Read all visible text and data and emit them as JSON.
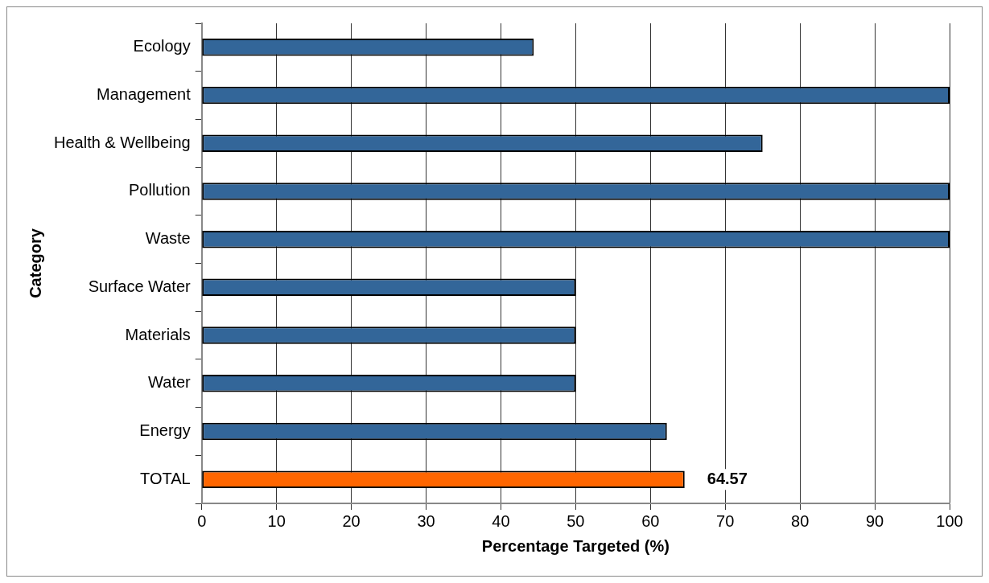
{
  "chart_data": {
    "type": "bar",
    "orientation": "horizontal",
    "categories": [
      "Ecology",
      "Management",
      "Health & Wellbeing",
      "Pollution",
      "Waste",
      "Surface Water",
      "Materials",
      "Water",
      "Energy",
      "TOTAL"
    ],
    "values": [
      44.4,
      100,
      75,
      100,
      100,
      50,
      50,
      50,
      62.2,
      64.57
    ],
    "colors": [
      "#336699",
      "#336699",
      "#336699",
      "#336699",
      "#336699",
      "#336699",
      "#336699",
      "#336699",
      "#336699",
      "#ff6600"
    ],
    "value_labels": [
      null,
      null,
      null,
      null,
      null,
      null,
      null,
      null,
      null,
      "64.57"
    ],
    "xlabel": "Percentage Targeted (%)",
    "ylabel": "Category",
    "xlim": [
      0,
      100
    ],
    "xticks": [
      0,
      10,
      20,
      30,
      40,
      50,
      60,
      70,
      80,
      90,
      100
    ],
    "grid": "x",
    "legend": false
  }
}
